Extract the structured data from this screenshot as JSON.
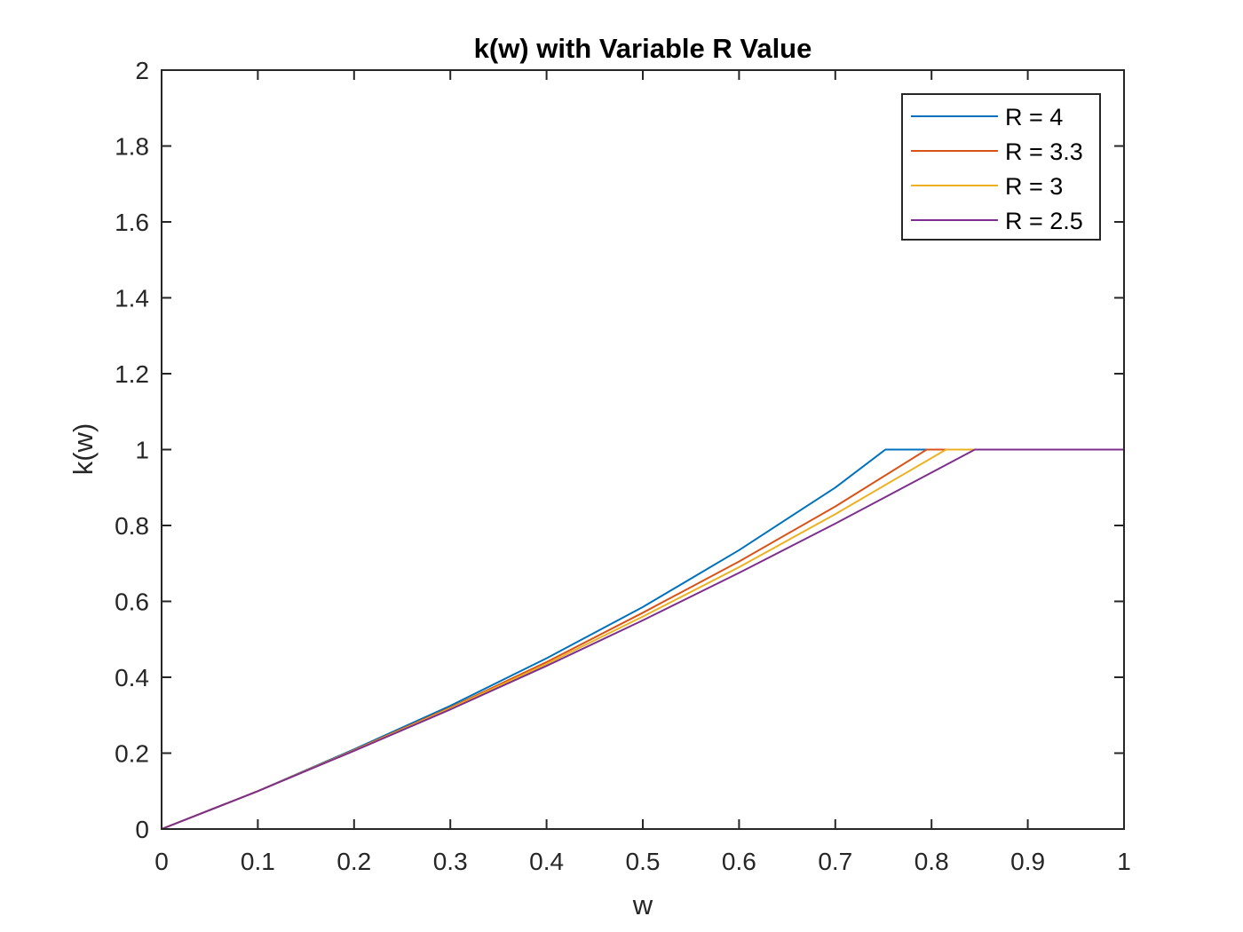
{
  "chart_data": {
    "type": "line",
    "title": "k(w) with Variable R Value",
    "xlabel": "w",
    "ylabel": "k(w)",
    "xlim": [
      0,
      1
    ],
    "ylim": [
      0,
      2
    ],
    "xticks": [
      0,
      0.1,
      0.2,
      0.3,
      0.4,
      0.5,
      0.6,
      0.7,
      0.8,
      0.9,
      1
    ],
    "xtick_labels": [
      "0",
      "0.1",
      "0.2",
      "0.3",
      "0.4",
      "0.5",
      "0.6",
      "0.7",
      "0.8",
      "0.9",
      "1"
    ],
    "yticks": [
      0,
      0.2,
      0.4,
      0.6,
      0.8,
      1,
      1.2,
      1.4,
      1.6,
      1.8,
      2
    ],
    "ytick_labels": [
      "0",
      "0.2",
      "0.4",
      "0.6",
      "0.8",
      "1",
      "1.2",
      "1.4",
      "1.6",
      "1.8",
      "2"
    ],
    "grid": false,
    "legend_position": "top-right",
    "series": [
      {
        "name": "R = 4",
        "color": "#0072BD",
        "x": [
          0,
          0.1,
          0.2,
          0.3,
          0.4,
          0.5,
          0.6,
          0.7,
          0.752,
          0.8,
          0.9,
          1
        ],
        "y": [
          0,
          0.1,
          0.21,
          0.325,
          0.45,
          0.585,
          0.735,
          0.9,
          1,
          1,
          1,
          1
        ]
      },
      {
        "name": "R = 3.3",
        "color": "#D95319",
        "x": [
          0,
          0.1,
          0.2,
          0.3,
          0.4,
          0.5,
          0.6,
          0.7,
          0.795,
          0.8,
          0.9,
          1
        ],
        "y": [
          0,
          0.1,
          0.208,
          0.32,
          0.44,
          0.57,
          0.705,
          0.85,
          1,
          1,
          1,
          1
        ]
      },
      {
        "name": "R = 3",
        "color": "#EDB120",
        "x": [
          0,
          0.1,
          0.2,
          0.3,
          0.4,
          0.5,
          0.6,
          0.7,
          0.815,
          0.9,
          1
        ],
        "y": [
          0,
          0.1,
          0.207,
          0.318,
          0.435,
          0.56,
          0.69,
          0.83,
          1,
          1,
          1
        ]
      },
      {
        "name": "R = 2.5",
        "color": "#7E2F8E",
        "x": [
          0,
          0.1,
          0.2,
          0.3,
          0.4,
          0.5,
          0.6,
          0.7,
          0.845,
          0.9,
          1
        ],
        "y": [
          0,
          0.1,
          0.206,
          0.315,
          0.43,
          0.55,
          0.675,
          0.805,
          1,
          1,
          1
        ]
      }
    ]
  }
}
